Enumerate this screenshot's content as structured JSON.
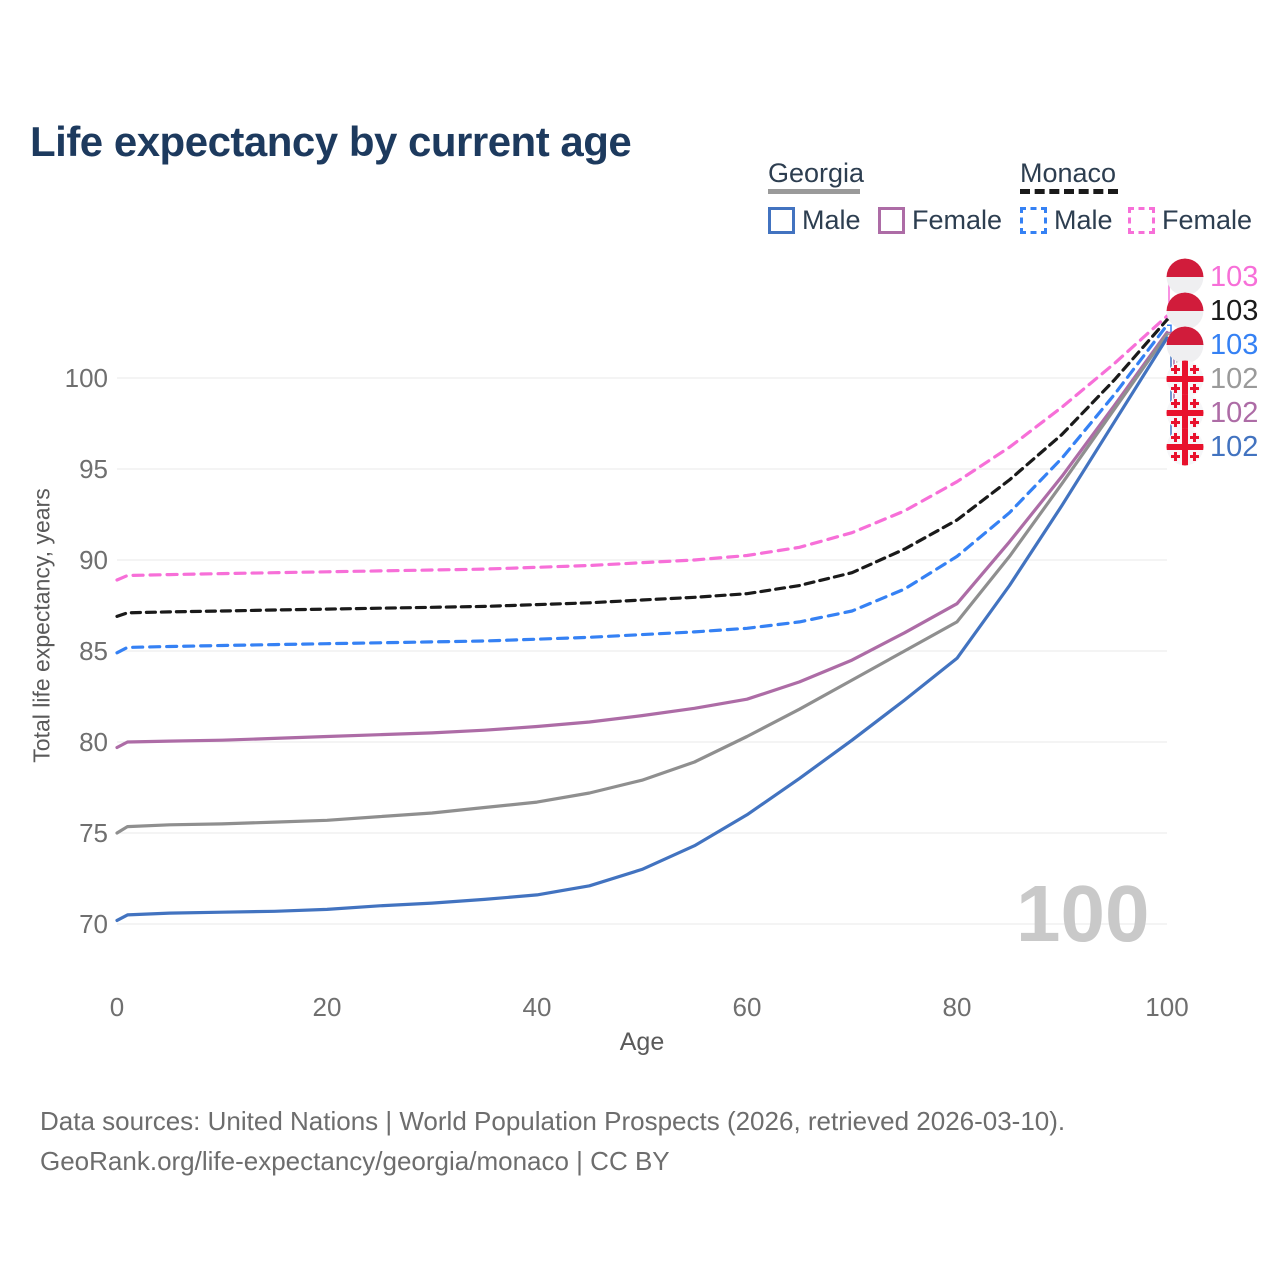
{
  "title": "Life expectancy by current age",
  "legend": {
    "groups": [
      {
        "label": "Georgia",
        "line_style": "solid",
        "underline_color": "#9a9a9a",
        "items": [
          {
            "label": "Male",
            "color": "#4273c0"
          },
          {
            "label": "Female",
            "color": "#ad6ca6"
          }
        ]
      },
      {
        "label": "Monaco",
        "line_style": "dashed",
        "underline_color": "#1a1a1a",
        "items": [
          {
            "label": "Male",
            "color": "#3581f4"
          },
          {
            "label": "Female",
            "color": "#f76fd8"
          }
        ]
      }
    ]
  },
  "watermark": "100",
  "footer": {
    "line1": "Data sources: United Nations | World Population Prospects (2026, retrieved 2026-03-10).",
    "line2": "GeoRank.org/life-expectancy/georgia/monaco | CC BY"
  },
  "chart_data": {
    "type": "line",
    "title": "Life expectancy by current age",
    "xlabel": "Age",
    "ylabel": "Total life expectancy, years",
    "xlim": [
      0,
      100
    ],
    "ylim": [
      69,
      104
    ],
    "grid": "horizontal",
    "xticks": [
      0,
      20,
      40,
      60,
      80,
      100
    ],
    "yticks": [
      70,
      75,
      80,
      85,
      90,
      95,
      100
    ],
    "x": [
      0,
      1,
      5,
      10,
      15,
      20,
      25,
      30,
      35,
      40,
      45,
      50,
      55,
      60,
      65,
      70,
      75,
      80,
      85,
      90,
      95,
      100
    ],
    "series": [
      {
        "id": "georgia-male",
        "country": "Georgia",
        "name": "Male",
        "color": "#4273c0",
        "dash": null,
        "values": [
          70.2,
          70.5,
          70.6,
          70.65,
          70.7,
          70.8,
          71.0,
          71.15,
          71.35,
          71.6,
          72.1,
          73.0,
          74.3,
          76.0,
          78.0,
          80.1,
          82.3,
          84.6,
          88.6,
          93.0,
          97.6,
          102.2
        ]
      },
      {
        "id": "georgia-female",
        "country": "Georgia",
        "name": "Female",
        "color": "#ad6ca6",
        "dash": null,
        "values": [
          79.7,
          80.0,
          80.05,
          80.1,
          80.2,
          80.3,
          80.4,
          80.5,
          80.65,
          80.85,
          81.1,
          81.45,
          81.85,
          82.35,
          83.3,
          84.5,
          86.0,
          87.6,
          91.0,
          94.6,
          98.5,
          102.5
        ]
      },
      {
        "id": "georgia-overall",
        "country": "Georgia",
        "name": "Georgia",
        "color": "#8f8f8f",
        "dash": null,
        "values": [
          75.0,
          75.35,
          75.45,
          75.5,
          75.6,
          75.7,
          75.9,
          76.1,
          76.4,
          76.7,
          77.2,
          77.9,
          78.9,
          80.3,
          81.8,
          83.4,
          85.0,
          86.6,
          90.2,
          94.2,
          98.3,
          102.4
        ]
      },
      {
        "id": "monaco-male",
        "country": "Monaco",
        "name": "Male",
        "color": "#3581f4",
        "dash": "10 7",
        "values": [
          84.9,
          85.2,
          85.25,
          85.3,
          85.35,
          85.4,
          85.45,
          85.5,
          85.55,
          85.65,
          85.75,
          85.9,
          86.05,
          86.25,
          86.6,
          87.2,
          88.4,
          90.2,
          92.6,
          95.6,
          99.1,
          102.9
        ]
      },
      {
        "id": "monaco-overall",
        "country": "Monaco",
        "name": "Monaco",
        "color": "#1a1a1a",
        "dash": "9 6",
        "values": [
          86.9,
          87.1,
          87.15,
          87.2,
          87.25,
          87.3,
          87.35,
          87.4,
          87.45,
          87.55,
          87.65,
          87.8,
          87.95,
          88.15,
          88.6,
          89.3,
          90.6,
          92.2,
          94.4,
          96.9,
          99.9,
          103.2
        ]
      },
      {
        "id": "monaco-female",
        "country": "Monaco",
        "name": "Female",
        "color": "#f76fd8",
        "dash": "10 7",
        "values": [
          88.9,
          89.15,
          89.2,
          89.25,
          89.3,
          89.35,
          89.4,
          89.45,
          89.5,
          89.6,
          89.7,
          89.85,
          90.0,
          90.25,
          90.7,
          91.5,
          92.7,
          94.3,
          96.2,
          98.4,
          100.8,
          103.4
        ]
      }
    ],
    "end_labels": [
      {
        "value": "103",
        "color": "#f76fd8",
        "flag": "monaco",
        "series_index": 5
      },
      {
        "value": "103",
        "color": "#1a1a1a",
        "flag": "monaco",
        "series_index": 4
      },
      {
        "value": "103",
        "color": "#3581f4",
        "flag": "monaco",
        "series_index": 3
      },
      {
        "value": "102",
        "color": "#9a9a9a",
        "flag": "georgia",
        "series_index": 2
      },
      {
        "value": "102",
        "color": "#ad6ca6",
        "flag": "georgia",
        "series_index": 1
      },
      {
        "value": "102",
        "color": "#4273c0",
        "flag": "georgia",
        "series_index": 0
      }
    ]
  }
}
